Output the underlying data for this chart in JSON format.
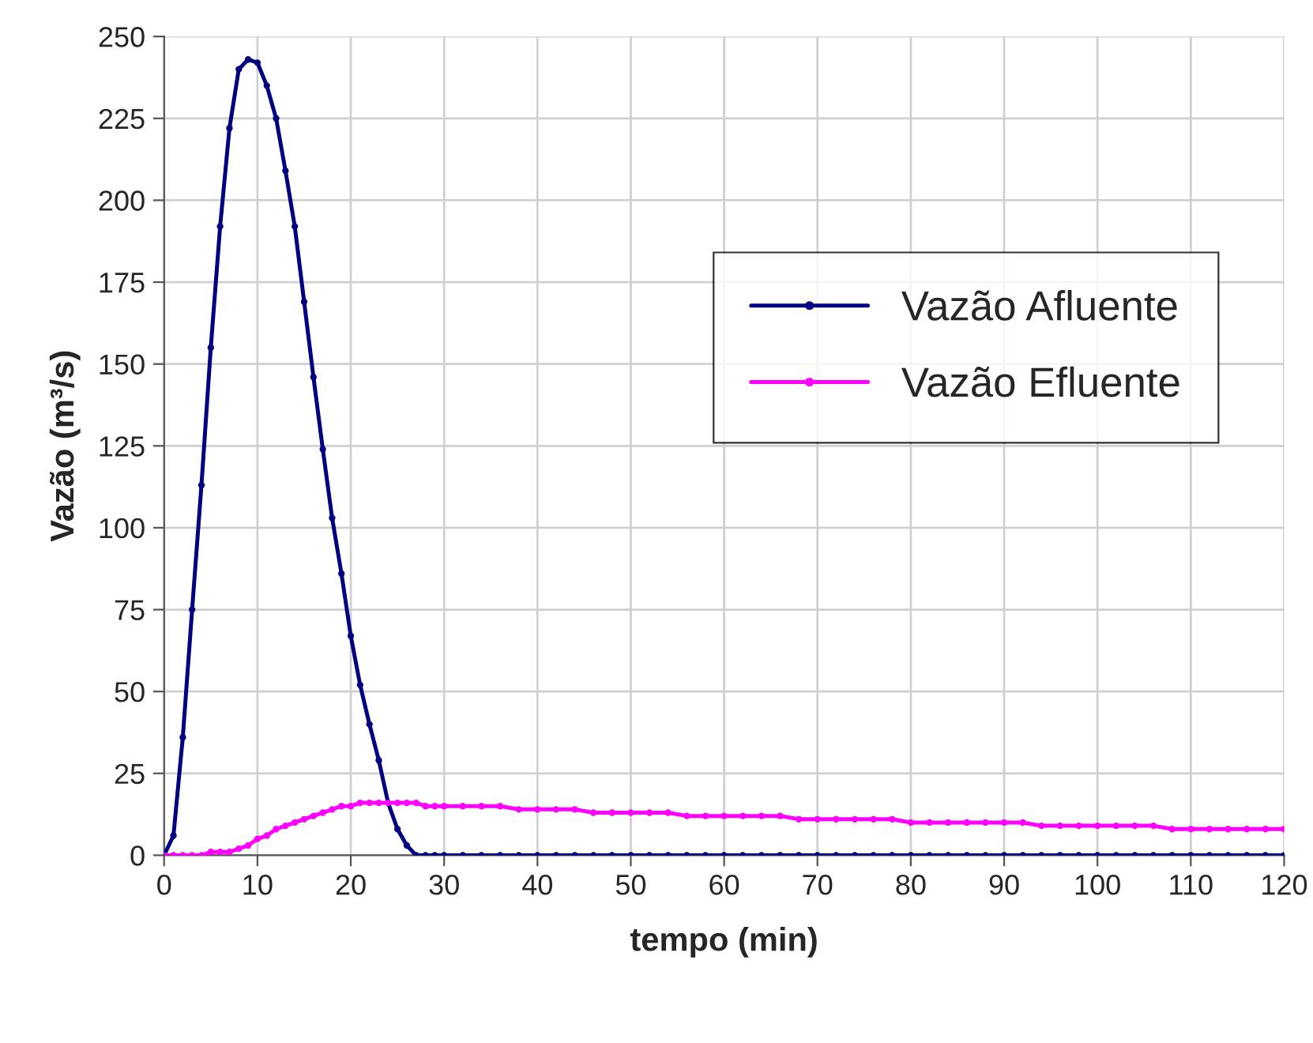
{
  "chart_data": {
    "type": "line",
    "xlabel": "tempo (min)",
    "ylabel": "Vazão (m³/s)",
    "x": [
      0,
      1,
      2,
      3,
      4,
      5,
      6,
      7,
      8,
      9,
      10,
      11,
      12,
      13,
      14,
      15,
      16,
      17,
      18,
      19,
      20,
      21,
      22,
      23,
      24,
      25,
      26,
      27,
      28,
      29,
      30,
      32,
      34,
      36,
      38,
      40,
      42,
      44,
      46,
      48,
      50,
      52,
      54,
      56,
      58,
      60,
      62,
      64,
      66,
      68,
      70,
      72,
      74,
      76,
      78,
      80,
      82,
      84,
      86,
      88,
      90,
      92,
      94,
      96,
      98,
      100,
      102,
      104,
      106,
      108,
      110,
      112,
      114,
      116,
      118,
      120
    ],
    "series": [
      {
        "name": "Vazão Afluente",
        "color": "#000080",
        "values": [
          0,
          6,
          36,
          75,
          113,
          155,
          192,
          222,
          240,
          243,
          242,
          235,
          225,
          209,
          192,
          169,
          146,
          124,
          103,
          86,
          67,
          52,
          40,
          29,
          16,
          8,
          3,
          0,
          0,
          0,
          0,
          0,
          0,
          0,
          0,
          0,
          0,
          0,
          0,
          0,
          0,
          0,
          0,
          0,
          0,
          0,
          0,
          0,
          0,
          0,
          0,
          0,
          0,
          0,
          0,
          0,
          0,
          0,
          0,
          0,
          0,
          0,
          0,
          0,
          0,
          0,
          0,
          0,
          0,
          0,
          0,
          0,
          0,
          0,
          0,
          0
        ]
      },
      {
        "name": "Vazão Efluente",
        "color": "#ff00ff",
        "values": [
          0,
          0,
          0,
          0,
          0,
          1,
          1,
          1,
          2,
          3,
          5,
          6,
          8,
          9,
          10,
          11,
          12,
          13,
          14,
          15,
          15,
          16,
          16,
          16,
          16,
          16,
          16,
          16,
          15,
          15,
          15,
          15,
          15,
          15,
          14,
          14,
          14,
          14,
          13,
          13,
          13,
          13,
          13,
          12,
          12,
          12,
          12,
          12,
          12,
          11,
          11,
          11,
          11,
          11,
          11,
          10,
          10,
          10,
          10,
          10,
          10,
          10,
          9,
          9,
          9,
          9,
          9,
          9,
          9,
          8,
          8,
          8,
          8,
          8,
          8,
          8
        ]
      }
    ],
    "xlim": [
      0,
      120
    ],
    "xticks": [
      0,
      10,
      20,
      30,
      40,
      50,
      60,
      70,
      80,
      90,
      100,
      110,
      120
    ],
    "ylim": [
      0,
      250
    ],
    "yticks": [
      0,
      25,
      50,
      75,
      100,
      125,
      150,
      175,
      200,
      225,
      250
    ],
    "grid": true,
    "legend": "right",
    "marker": "circle",
    "line_style": "solid"
  }
}
